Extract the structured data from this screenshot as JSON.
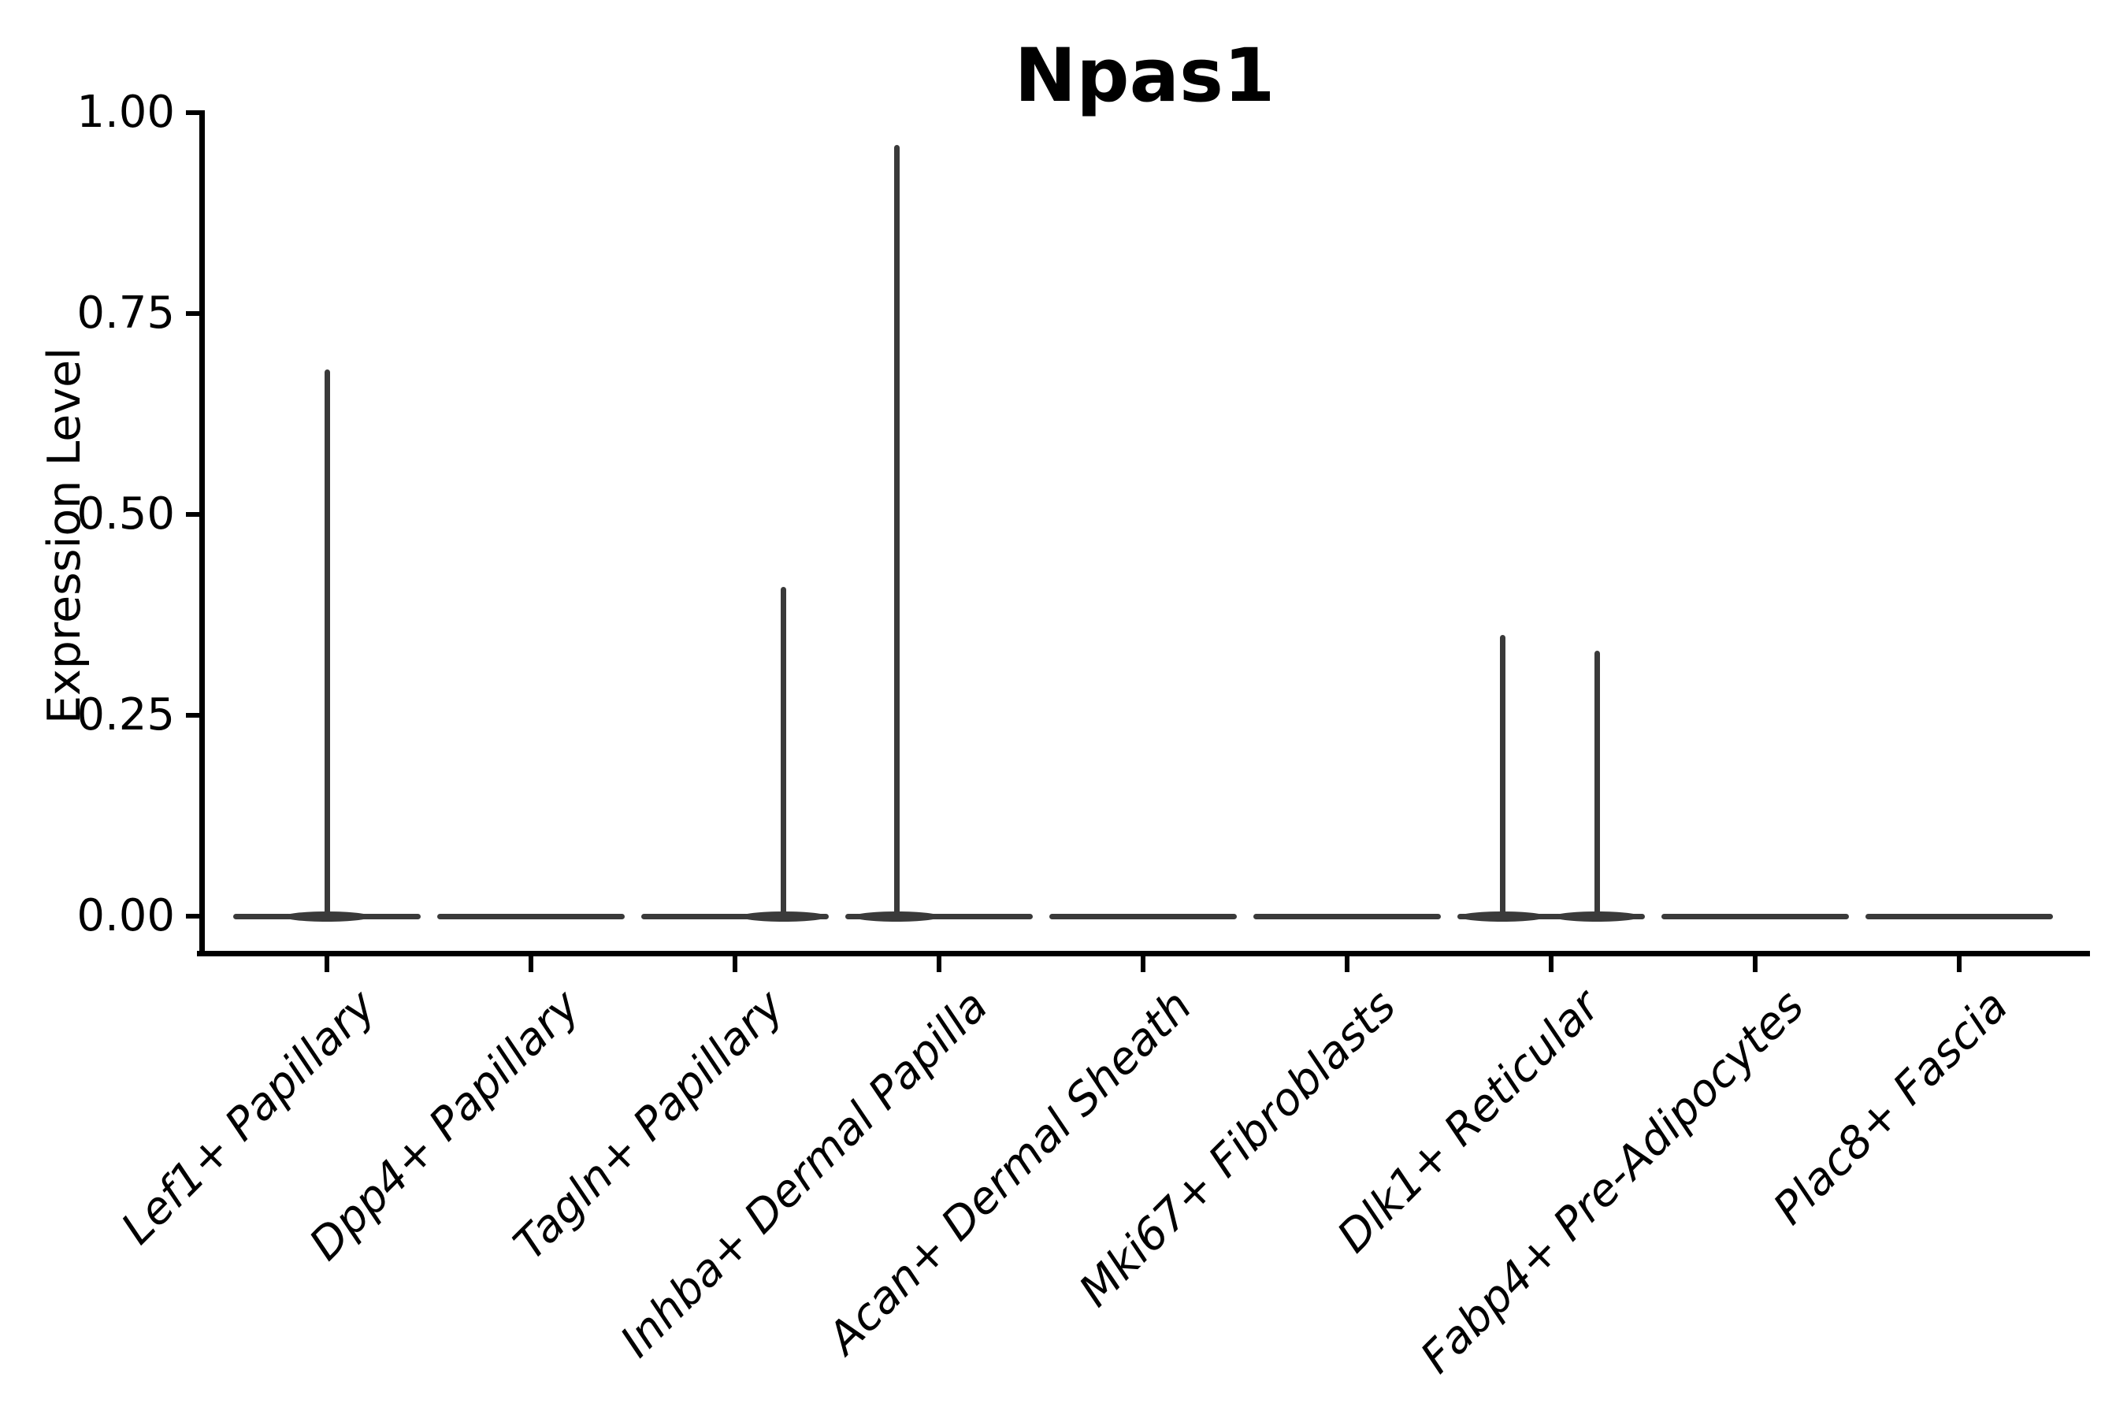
{
  "chart_data": {
    "type": "violin",
    "title": "Npas1",
    "xlabel": "",
    "ylabel": "Expression Level",
    "ylim": [
      0,
      1.0
    ],
    "grid": false,
    "legend": null,
    "spines": [
      "left",
      "bottom"
    ],
    "ytick_labels": [
      "1.00",
      "0.75",
      "0.50",
      "0.25",
      "0.00"
    ],
    "ytick_values": [
      1.0,
      0.75,
      0.5,
      0.25,
      0.0
    ],
    "categories": [
      "Lef1+ Papillary",
      "Dpp4+ Papillary",
      "Tagln+ Papillary",
      "Inhba+ Dermal Papilla",
      "Acan+ Dermal Sheath",
      "Mki67+ Fibroblasts",
      "Dlk1+ Reticular",
      "Fabp4+ Pre-Adipocytes",
      "Plac8+ Fascia"
    ],
    "violins": [
      {
        "category": "Lef1+ Papillary",
        "body": "flat-at-zero",
        "max_expression": 0.68,
        "spikes": [
          {
            "offset_frac": 0.0,
            "peak_value": 0.68
          }
        ]
      },
      {
        "category": "Dpp4+ Papillary",
        "body": "flat-at-zero",
        "max_expression": 0.0,
        "spikes": []
      },
      {
        "category": "Tagln+ Papillary",
        "body": "flat-at-zero",
        "max_expression": 0.41,
        "spikes": [
          {
            "offset_frac": 0.52,
            "peak_value": 0.41
          }
        ]
      },
      {
        "category": "Inhba+ Dermal Papilla",
        "body": "flat-at-zero",
        "max_expression": 0.96,
        "spikes": [
          {
            "offset_frac": -0.45,
            "peak_value": 0.96
          }
        ]
      },
      {
        "category": "Acan+ Dermal Sheath",
        "body": "flat-at-zero",
        "max_expression": 0.0,
        "spikes": []
      },
      {
        "category": "Mki67+ Fibroblasts",
        "body": "flat-at-zero",
        "max_expression": 0.0,
        "spikes": []
      },
      {
        "category": "Dlk1+ Reticular",
        "body": "flat-at-zero",
        "max_expression": 0.35,
        "spikes": [
          {
            "offset_frac": -0.52,
            "peak_value": 0.35
          },
          {
            "offset_frac": 0.49,
            "peak_value": 0.33
          }
        ]
      },
      {
        "category": "Fabp4+ Pre-Adipocytes",
        "body": "flat-at-zero",
        "max_expression": 0.0,
        "spikes": []
      },
      {
        "category": "Plac8+ Fascia",
        "body": "flat-at-zero",
        "max_expression": 0.0,
        "spikes": []
      }
    ],
    "colors": {
      "violin": "#3a3a3a",
      "axis": "#000000",
      "text": "#000000",
      "background": "#ffffff"
    }
  }
}
